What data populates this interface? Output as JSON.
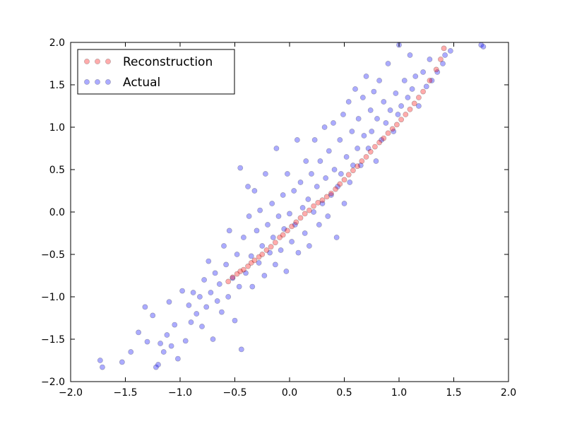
{
  "chart_data": {
    "type": "scatter",
    "title": "",
    "xlabel": "",
    "ylabel": "",
    "xlim": [
      -2.0,
      2.0
    ],
    "ylim": [
      -2.0,
      2.0
    ],
    "grid": false,
    "legend_position": "top-left",
    "xticks": [
      "−2.0",
      "−1.5",
      "−1.0",
      "−0.5",
      "0.0",
      "0.5",
      "1.0",
      "1.5",
      "2.0"
    ],
    "yticks": [
      "−2.0",
      "−1.5",
      "−1.0",
      "−0.5",
      "0.0",
      "0.5",
      "1.0",
      "1.5",
      "2.0"
    ],
    "series": [
      {
        "name": "Reconstruction",
        "color": "#ff0000",
        "points": [
          [
            -0.56,
            -0.82
          ],
          [
            -0.52,
            -0.77
          ],
          [
            -0.48,
            -0.73
          ],
          [
            -0.45,
            -0.7
          ],
          [
            -0.42,
            -0.68
          ],
          [
            -0.38,
            -0.64
          ],
          [
            -0.35,
            -0.6
          ],
          [
            -0.32,
            -0.57
          ],
          [
            -0.28,
            -0.53
          ],
          [
            -0.25,
            -0.5
          ],
          [
            -0.21,
            -0.45
          ],
          [
            -0.17,
            -0.41
          ],
          [
            -0.13,
            -0.36
          ],
          [
            -0.09,
            -0.3
          ],
          [
            -0.06,
            -0.27
          ],
          [
            -0.02,
            -0.22
          ],
          [
            0.02,
            -0.17
          ],
          [
            0.06,
            -0.12
          ],
          [
            0.1,
            -0.07
          ],
          [
            0.14,
            -0.02
          ],
          [
            0.18,
            0.02
          ],
          [
            0.22,
            0.07
          ],
          [
            0.26,
            0.11
          ],
          [
            0.3,
            0.14
          ],
          [
            0.34,
            0.18
          ],
          [
            0.38,
            0.22
          ],
          [
            0.42,
            0.27
          ],
          [
            0.46,
            0.33
          ],
          [
            0.5,
            0.38
          ],
          [
            0.54,
            0.44
          ],
          [
            0.58,
            0.49
          ],
          [
            0.62,
            0.54
          ],
          [
            0.66,
            0.6
          ],
          [
            0.7,
            0.65
          ],
          [
            0.74,
            0.71
          ],
          [
            0.78,
            0.77
          ],
          [
            0.82,
            0.82
          ],
          [
            0.86,
            0.87
          ],
          [
            0.9,
            0.93
          ],
          [
            0.94,
            0.98
          ],
          [
            0.98,
            1.03
          ],
          [
            1.02,
            1.09
          ],
          [
            1.06,
            1.15
          ],
          [
            1.1,
            1.21
          ],
          [
            1.14,
            1.28
          ],
          [
            1.18,
            1.35
          ],
          [
            1.22,
            1.42
          ],
          [
            1.28,
            1.55
          ],
          [
            1.34,
            1.68
          ],
          [
            1.38,
            1.8
          ],
          [
            1.41,
            1.93
          ]
        ]
      },
      {
        "name": "Actual",
        "color": "#0000ff",
        "points": [
          [
            -1.73,
            -1.75
          ],
          [
            -1.71,
            -1.83
          ],
          [
            -1.53,
            -1.77
          ],
          [
            -1.45,
            -1.65
          ],
          [
            -1.38,
            -1.42
          ],
          [
            -1.32,
            -1.12
          ],
          [
            -1.3,
            -1.53
          ],
          [
            -1.25,
            -1.22
          ],
          [
            -1.22,
            -1.83
          ],
          [
            -1.2,
            -1.8
          ],
          [
            -1.18,
            -1.55
          ],
          [
            -1.15,
            -1.65
          ],
          [
            -1.12,
            -1.45
          ],
          [
            -1.1,
            -1.06
          ],
          [
            -1.08,
            -1.58
          ],
          [
            -1.05,
            -1.33
          ],
          [
            -1.02,
            -1.73
          ],
          [
            -0.98,
            -0.93
          ],
          [
            -0.95,
            -1.52
          ],
          [
            -0.92,
            -1.1
          ],
          [
            -0.9,
            -1.3
          ],
          [
            -0.88,
            -0.95
          ],
          [
            -0.85,
            -1.2
          ],
          [
            -0.82,
            -1.0
          ],
          [
            -0.8,
            -1.35
          ],
          [
            -0.78,
            -0.8
          ],
          [
            -0.76,
            -1.12
          ],
          [
            -0.74,
            -0.58
          ],
          [
            -0.72,
            -0.95
          ],
          [
            -0.7,
            -1.5
          ],
          [
            -0.68,
            -0.72
          ],
          [
            -0.66,
            -1.05
          ],
          [
            -0.64,
            -0.85
          ],
          [
            -0.62,
            -1.18
          ],
          [
            -0.6,
            -0.4
          ],
          [
            -0.58,
            -0.62
          ],
          [
            -0.56,
            -1.0
          ],
          [
            -0.55,
            -0.22
          ],
          [
            -0.52,
            -0.78
          ],
          [
            -0.5,
            -1.28
          ],
          [
            -0.48,
            -0.5
          ],
          [
            -0.46,
            -0.88
          ],
          [
            -0.45,
            0.52
          ],
          [
            -0.44,
            -1.62
          ],
          [
            -0.42,
            -0.3
          ],
          [
            -0.4,
            -0.72
          ],
          [
            -0.38,
            0.3
          ],
          [
            -0.37,
            -0.05
          ],
          [
            -0.35,
            -0.52
          ],
          [
            -0.34,
            -0.88
          ],
          [
            -0.32,
            0.25
          ],
          [
            -0.3,
            -0.22
          ],
          [
            -0.28,
            -0.6
          ],
          [
            -0.27,
            0.02
          ],
          [
            -0.25,
            -0.4
          ],
          [
            -0.23,
            -0.75
          ],
          [
            -0.22,
            0.45
          ],
          [
            -0.2,
            -0.15
          ],
          [
            -0.18,
            -0.48
          ],
          [
            -0.16,
            0.1
          ],
          [
            -0.15,
            -0.3
          ],
          [
            -0.13,
            -0.62
          ],
          [
            -0.12,
            0.75
          ],
          [
            -0.1,
            -0.05
          ],
          [
            -0.08,
            -0.45
          ],
          [
            -0.06,
            0.2
          ],
          [
            -0.05,
            -0.2
          ],
          [
            -0.03,
            -0.7
          ],
          [
            -0.02,
            0.45
          ],
          [
            0.0,
            -0.02
          ],
          [
            0.02,
            -0.35
          ],
          [
            0.04,
            0.25
          ],
          [
            0.05,
            -0.15
          ],
          [
            0.07,
            0.85
          ],
          [
            0.08,
            -0.48
          ],
          [
            0.1,
            0.35
          ],
          [
            0.12,
            0.05
          ],
          [
            0.14,
            -0.25
          ],
          [
            0.15,
            0.6
          ],
          [
            0.17,
            0.15
          ],
          [
            0.18,
            -0.4
          ],
          [
            0.2,
            0.45
          ],
          [
            0.22,
            0.0
          ],
          [
            0.23,
            0.85
          ],
          [
            0.25,
            0.3
          ],
          [
            0.27,
            -0.15
          ],
          [
            0.28,
            0.6
          ],
          [
            0.3,
            0.1
          ],
          [
            0.32,
            1.0
          ],
          [
            0.33,
            0.4
          ],
          [
            0.35,
            -0.05
          ],
          [
            0.36,
            0.72
          ],
          [
            0.38,
            0.2
          ],
          [
            0.4,
            1.05
          ],
          [
            0.41,
            0.5
          ],
          [
            0.43,
            -0.3
          ],
          [
            0.44,
            0.3
          ],
          [
            0.46,
            0.85
          ],
          [
            0.47,
            0.45
          ],
          [
            0.49,
            1.15
          ],
          [
            0.5,
            0.1
          ],
          [
            0.52,
            0.65
          ],
          [
            0.54,
            1.3
          ],
          [
            0.55,
            0.35
          ],
          [
            0.57,
            0.95
          ],
          [
            0.58,
            0.55
          ],
          [
            0.6,
            1.45
          ],
          [
            0.62,
            0.75
          ],
          [
            0.63,
            1.1
          ],
          [
            0.65,
            0.55
          ],
          [
            0.67,
            1.35
          ],
          [
            0.68,
            0.9
          ],
          [
            0.7,
            1.6
          ],
          [
            0.72,
            0.75
          ],
          [
            0.74,
            1.2
          ],
          [
            0.75,
            0.95
          ],
          [
            0.77,
            1.42
          ],
          [
            0.79,
            0.6
          ],
          [
            0.8,
            1.1
          ],
          [
            0.82,
            1.55
          ],
          [
            0.84,
            0.85
          ],
          [
            0.86,
            1.3
          ],
          [
            0.88,
            1.05
          ],
          [
            0.9,
            1.75
          ],
          [
            0.92,
            1.2
          ],
          [
            0.95,
            0.95
          ],
          [
            0.97,
            1.4
          ],
          [
            0.99,
            1.15
          ],
          [
            1.0,
            1.97
          ],
          [
            1.02,
            1.25
          ],
          [
            1.05,
            1.55
          ],
          [
            1.08,
            1.35
          ],
          [
            1.1,
            1.85
          ],
          [
            1.12,
            1.45
          ],
          [
            1.15,
            1.6
          ],
          [
            1.18,
            1.25
          ],
          [
            1.22,
            1.65
          ],
          [
            1.25,
            1.48
          ],
          [
            1.28,
            1.8
          ],
          [
            1.3,
            1.55
          ],
          [
            1.35,
            1.65
          ],
          [
            1.4,
            1.75
          ],
          [
            1.42,
            1.85
          ],
          [
            1.47,
            1.9
          ],
          [
            1.75,
            1.97
          ],
          [
            1.77,
            1.95
          ]
        ]
      }
    ]
  }
}
